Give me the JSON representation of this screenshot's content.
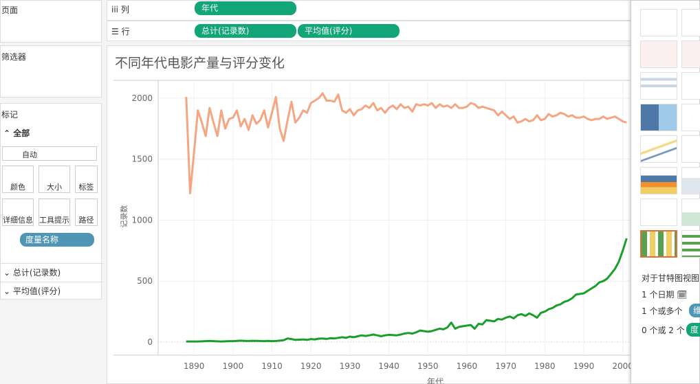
{
  "sidebar": {
    "pages": "页面",
    "filters": "筛选器",
    "marks": "标记",
    "all": "全部",
    "auto": "自动",
    "buttons": [
      "颜色",
      "大小",
      "标签",
      "详细信息",
      "工具提示",
      "路径"
    ],
    "measure_pill": "度量名称",
    "sections": [
      "总计(记录数)",
      "平均值(评分)"
    ]
  },
  "shelves": {
    "columns_label": "列",
    "columns_pill": "年代",
    "rows_label": "行",
    "rows_pills": [
      "总计(记录数)",
      "平均值(评分)"
    ]
  },
  "chart_data": {
    "type": "line",
    "title": "不同年代电影产量与评分变化",
    "y_label": "记录数",
    "x_label": "年代",
    "x": [
      1888,
      1889,
      1890,
      1891,
      1892,
      1893,
      1894,
      1895,
      1896,
      1897,
      1898,
      1899,
      1900,
      1901,
      1902,
      1903,
      1904,
      1905,
      1906,
      1907,
      1908,
      1909,
      1910,
      1911,
      1912,
      1913,
      1914,
      1915,
      1916,
      1917,
      1918,
      1919,
      1920,
      1921,
      1922,
      1923,
      1924,
      1925,
      1926,
      1927,
      1928,
      1929,
      1930,
      1931,
      1932,
      1933,
      1934,
      1935,
      1936,
      1937,
      1938,
      1939,
      1940,
      1941,
      1942,
      1943,
      1944,
      1945,
      1946,
      1947,
      1948,
      1949,
      1950,
      1951,
      1952,
      1953,
      1954,
      1955,
      1956,
      1957,
      1958,
      1959,
      1960,
      1961,
      1962,
      1963,
      1964,
      1965,
      1966,
      1967,
      1968,
      1969,
      1970,
      1971,
      1972,
      1973,
      1974,
      1975,
      1976,
      1977,
      1978,
      1979,
      1980,
      1981,
      1982,
      1983,
      1984,
      1985,
      1986,
      1987,
      1988,
      1989,
      1990,
      1991,
      1992,
      1993,
      1994,
      1995,
      1996,
      1997,
      1998,
      1999,
      2000,
      2001
    ],
    "series": [
      {
        "name": "平均值(评分)",
        "color": "#f4a582",
        "values": [
          2010,
          1220,
          1550,
          1900,
          1800,
          1690,
          1920,
          1800,
          1690,
          1900,
          1750,
          1830,
          1840,
          1900,
          1770,
          1830,
          1740,
          1860,
          1790,
          1820,
          1900,
          1760,
          1880,
          2010,
          1750,
          1650,
          1820,
          1970,
          1800,
          1840,
          1900,
          1880,
          1960,
          1980,
          2000,
          2040,
          1980,
          1980,
          1970,
          2030,
          1900,
          1880,
          1910,
          1860,
          1900,
          1910,
          1940,
          1920,
          1960,
          1900,
          1920,
          1880,
          1920,
          1940,
          1910,
          1950,
          1920,
          1930,
          1890,
          1950,
          1940,
          1950,
          1940,
          1960,
          1920,
          1950,
          1930,
          1940,
          1920,
          1950,
          1920,
          1920,
          1930,
          1960,
          1950,
          1920,
          1930,
          1920,
          1910,
          1900,
          1860,
          1890,
          1860,
          1830,
          1850,
          1800,
          1810,
          1830,
          1810,
          1820,
          1860,
          1820,
          1830,
          1870,
          1850,
          1860,
          1880,
          1870,
          1850,
          1860,
          1840,
          1840,
          1850,
          1830,
          1820,
          1830,
          1830,
          1850,
          1830,
          1840,
          1850,
          1830,
          1810,
          1800
        ]
      },
      {
        "name": "总计(记录数)",
        "color": "#1a9e2a",
        "values": [
          5,
          5,
          5,
          5,
          6,
          8,
          10,
          8,
          6,
          5,
          6,
          8,
          8,
          10,
          12,
          10,
          9,
          11,
          10,
          9,
          8,
          10,
          8,
          9,
          12,
          15,
          30,
          25,
          18,
          20,
          22,
          18,
          25,
          22,
          28,
          30,
          26,
          32,
          30,
          35,
          40,
          35,
          45,
          40,
          48,
          55,
          50,
          55,
          62,
          55,
          48,
          55,
          60,
          58,
          55,
          62,
          70,
          75,
          70,
          80,
          95,
          90,
          85,
          90,
          100,
          110,
          105,
          120,
          160,
          110,
          125,
          130,
          135,
          140,
          110,
          150,
          145,
          180,
          175,
          170,
          190,
          185,
          200,
          210,
          195,
          220,
          230,
          215,
          235,
          220,
          200,
          240,
          250,
          270,
          280,
          300,
          310,
          330,
          340,
          360,
          390,
          395,
          400,
          420,
          440,
          460,
          490,
          500,
          520,
          560,
          600,
          660,
          750,
          850
        ]
      }
    ],
    "xlim": [
      1880.8,
      2002
    ],
    "xticks": [
      1890,
      1900,
      1910,
      1920,
      1930,
      1940,
      1950,
      1960,
      1970,
      1980,
      1990,
      2000
    ],
    "ylim": [
      -107,
      2146
    ],
    "yticks": [
      0,
      500,
      1000,
      1500,
      2000
    ],
    "grid": true
  },
  "showme": {
    "title": "对于甘特图视图",
    "lines": [
      "1 个日期",
      "1 个或多个",
      "0 个或 2 个"
    ],
    "pills": [
      "维",
      "度"
    ]
  }
}
